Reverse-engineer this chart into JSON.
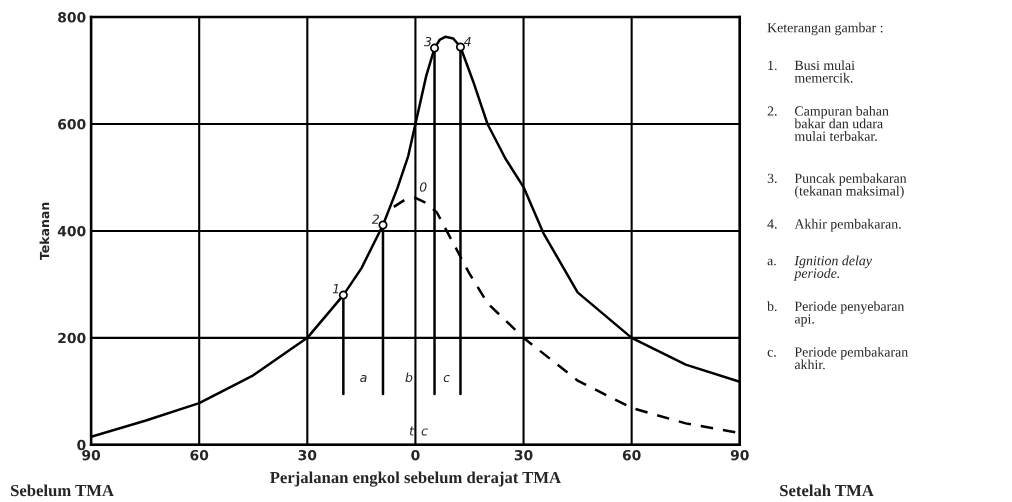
{
  "chart_data": {
    "type": "line",
    "ylabel": "Tekanan",
    "xlabel": "Perjalanan engkol sebelum derajat TMA",
    "xlim": [
      -90,
      90
    ],
    "ylim": [
      0,
      800
    ],
    "xticks": [
      {
        "value": -90,
        "label": "90"
      },
      {
        "value": -60,
        "label": "60"
      },
      {
        "value": -30,
        "label": "30"
      },
      0,
      30,
      60,
      90
    ],
    "yticks": [
      0,
      200,
      400,
      600,
      800
    ],
    "grid": true,
    "legend": false,
    "series": [
      {
        "color": "#000000",
        "line_style": "solid",
        "x": [
          -90,
          -75,
          -60,
          -45,
          -30,
          -20,
          -15,
          -9,
          -5,
          -2,
          0,
          3,
          5.3,
          6.8,
          8.3,
          10.5,
          12.5,
          16,
          20,
          25,
          30,
          35.5,
          45,
          60,
          75,
          90
        ],
        "values": [
          15,
          45,
          78,
          130,
          200,
          280,
          330,
          411,
          480,
          540,
          600,
          690,
          742,
          758,
          763,
          760,
          744,
          680,
          600,
          535,
          482,
          396,
          285,
          200,
          150,
          118
        ]
      },
      {
        "color": "#000000",
        "line_style": "dashed",
        "x": [
          -6,
          -3,
          0,
          3,
          6,
          9,
          15,
          20,
          30,
          45,
          60,
          75,
          90
        ],
        "values": [
          445,
          458,
          462,
          452,
          434,
          396,
          320,
          265,
          200,
          120,
          69,
          40,
          22
        ]
      },
      {
        "color": "#000000",
        "line_style": "solid",
        "x": [
          -20,
          -20
        ],
        "values": [
          280,
          95
        ]
      },
      {
        "color": "#000000",
        "line_style": "solid",
        "x": [
          -9,
          -9
        ],
        "values": [
          411,
          95
        ]
      },
      {
        "color": "#000000",
        "line_style": "solid",
        "x": [
          5.3,
          5.3
        ],
        "values": [
          742,
          95
        ]
      },
      {
        "color": "#000000",
        "line_style": "solid",
        "x": [
          12.5,
          12.5
        ],
        "values": [
          744,
          95
        ]
      },
      {
        "type": "scatter",
        "color": "#000000",
        "marker": "circle",
        "x": [
          -20,
          -9,
          5.3,
          12.5
        ],
        "values": [
          280,
          411,
          742,
          744
        ]
      }
    ],
    "annotations": [
      {
        "text": "1",
        "x": -22,
        "y": 290
      },
      {
        "text": "2",
        "x": -11,
        "y": 420
      },
      {
        "text": "3",
        "x": 3.5,
        "y": 752
      },
      {
        "text": "4",
        "x": 14.5,
        "y": 752
      },
      "0",
      "a",
      "b",
      "c",
      "t",
      "c",
      "Keterangan gambar :",
      "1. Busi mulai\nmemercik.",
      "2. Campuran bahan\nbakar dan udara\nmulai terbakar.",
      "3. Puncak pembakaran\n(tekanan maksimal)",
      "4. Akhir pembakaran.",
      "a. Ignition delay\nperiode.",
      "b. Periode penyebaran\napi.",
      "c. Periode pembakaran\nakhir.",
      "Sebelum TMA",
      "Setelah TMA"
    ]
  }
}
